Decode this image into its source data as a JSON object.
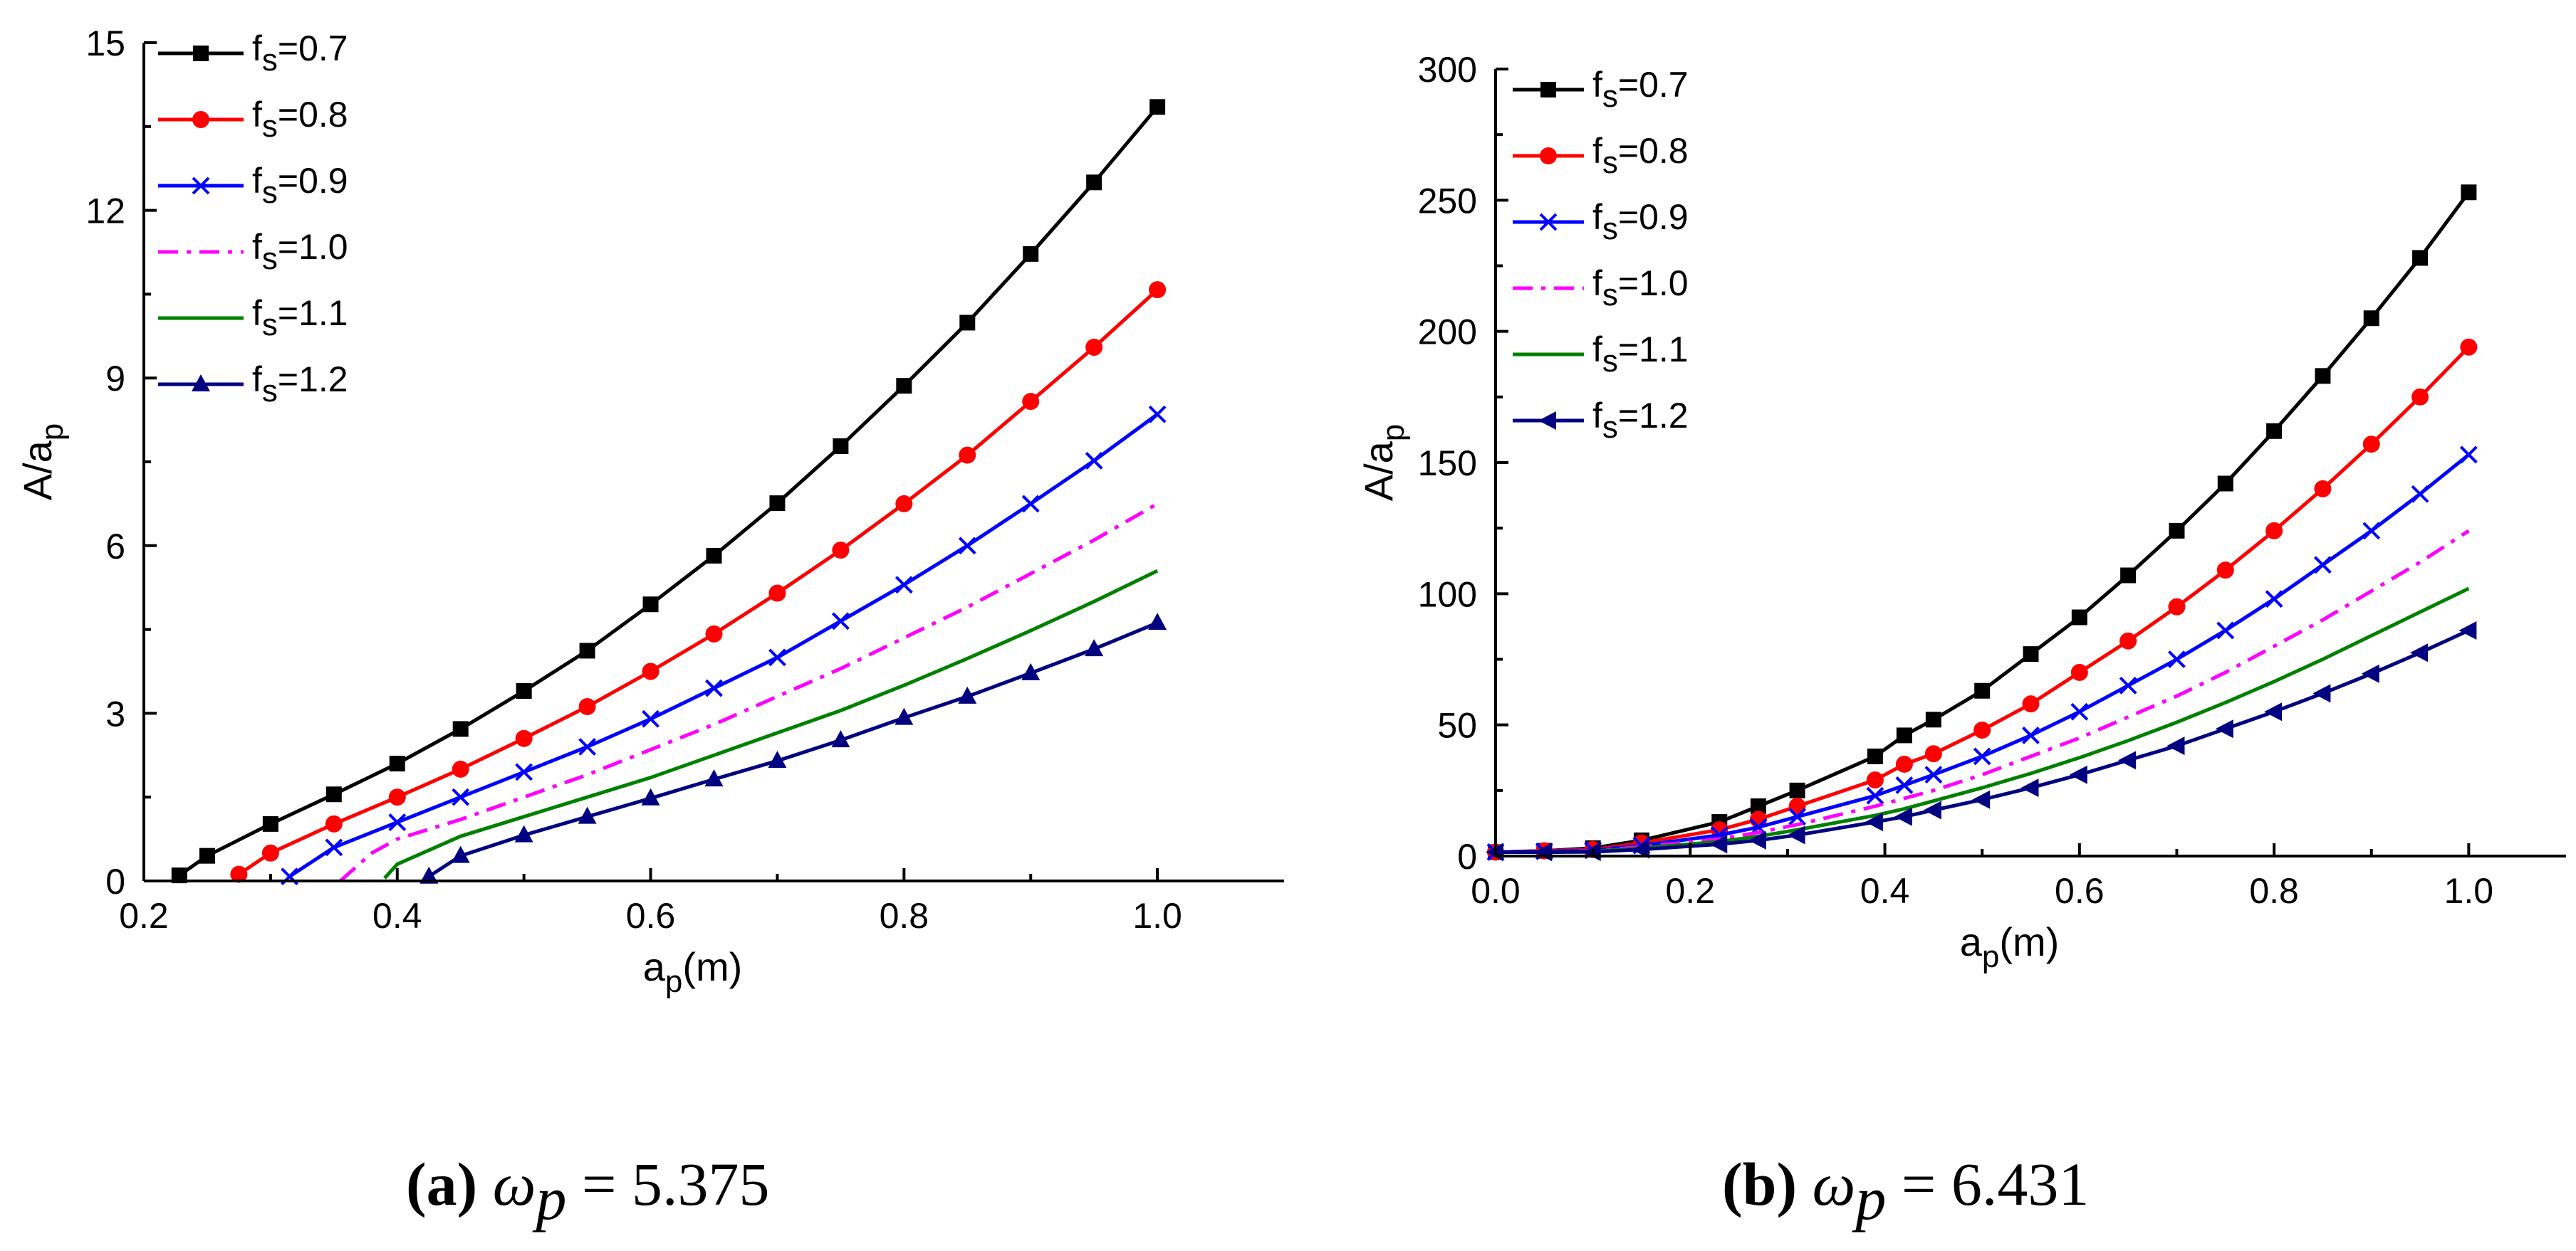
{
  "chart_data": [
    {
      "type": "line",
      "panel": "a",
      "caption": {
        "label": "(a)",
        "symbol": "ω",
        "subscript": "p",
        "equals": "=",
        "value": "5.375"
      },
      "xlabel": {
        "main": "a",
        "sub": "p",
        "rest": "(m)"
      },
      "ylabel": {
        "main": "A/a",
        "sub": "p"
      },
      "xlim": [
        0.2,
        1.1
      ],
      "ylim": [
        0,
        15
      ],
      "xticks": [
        0.2,
        0.4,
        0.6,
        0.8,
        1.0
      ],
      "xtick_labels": [
        "0.2",
        "0.4",
        "0.6",
        "0.8",
        "1.0"
      ],
      "yticks": [
        0,
        3,
        6,
        9,
        12,
        15
      ],
      "ytick_labels": [
        "0",
        "3",
        "6",
        "9",
        "12",
        "15"
      ],
      "legend_position": "top-left",
      "series": [
        {
          "name": "fs=0.7",
          "label_main": "f",
          "label_sub": "s",
          "label_rest": "=0.7",
          "color": "#000000",
          "dash": "",
          "marker": "square",
          "x": [
            0.228,
            0.25,
            0.3,
            0.35,
            0.4,
            0.45,
            0.5,
            0.55,
            0.6,
            0.65,
            0.7,
            0.75,
            0.8,
            0.85,
            0.9,
            0.95,
            1.0
          ],
          "y": [
            0.1,
            0.45,
            1.02,
            1.55,
            2.1,
            2.72,
            3.4,
            4.12,
            4.95,
            5.82,
            6.76,
            7.78,
            8.86,
            9.99,
            11.22,
            12.5,
            13.85
          ]
        },
        {
          "name": "fs=0.8",
          "label_main": "f",
          "label_sub": "s",
          "label_rest": "=0.8",
          "color": "#ff0000",
          "dash": "",
          "marker": "circle",
          "x": [
            0.275,
            0.3,
            0.35,
            0.4,
            0.45,
            0.5,
            0.55,
            0.6,
            0.65,
            0.7,
            0.75,
            0.8,
            0.85,
            0.9,
            0.95,
            1.0
          ],
          "y": [
            0.12,
            0.5,
            1.02,
            1.5,
            2.0,
            2.55,
            3.12,
            3.75,
            4.42,
            5.15,
            5.92,
            6.75,
            7.62,
            8.58,
            9.55,
            10.58
          ]
        },
        {
          "name": "fs=0.9",
          "label_main": "f",
          "label_sub": "s",
          "label_rest": "=0.9",
          "color": "#0000ff",
          "dash": "",
          "marker": "x",
          "x": [
            0.315,
            0.35,
            0.4,
            0.45,
            0.5,
            0.55,
            0.6,
            0.65,
            0.7,
            0.75,
            0.8,
            0.85,
            0.9,
            0.95,
            1.0
          ],
          "y": [
            0.08,
            0.6,
            1.05,
            1.5,
            1.95,
            2.4,
            2.9,
            3.45,
            4.0,
            4.65,
            5.3,
            6.0,
            6.75,
            7.52,
            8.35
          ]
        },
        {
          "name": "fs=1.0",
          "label_main": "f",
          "label_sub": "s",
          "label_rest": "=1.0",
          "color": "#ff00ff",
          "dash": "28,12,6,12",
          "marker": "none",
          "x": [
            0.355,
            0.38,
            0.4,
            0.45,
            0.5,
            0.55,
            0.6,
            0.65,
            0.7,
            0.75,
            0.8,
            0.85,
            0.9,
            0.95,
            1.0
          ],
          "y": [
            0.0,
            0.5,
            0.75,
            1.1,
            1.5,
            1.9,
            2.35,
            2.8,
            3.3,
            3.8,
            4.35,
            4.9,
            5.5,
            6.1,
            6.75
          ]
        },
        {
          "name": "fs=1.1",
          "label_main": "f",
          "label_sub": "s",
          "label_rest": "=1.1",
          "color": "#008000",
          "dash": "",
          "marker": "none",
          "x": [
            0.39,
            0.4,
            0.45,
            0.5,
            0.55,
            0.6,
            0.65,
            0.7,
            0.75,
            0.8,
            0.85,
            0.9,
            0.95,
            1.0
          ],
          "y": [
            0.05,
            0.3,
            0.8,
            1.15,
            1.5,
            1.85,
            2.25,
            2.65,
            3.05,
            3.5,
            3.98,
            4.48,
            5.0,
            5.55
          ]
        },
        {
          "name": "fs=1.2",
          "label_main": "f",
          "label_sub": "s",
          "label_rest": "=1.2",
          "color": "#000080",
          "dash": "",
          "marker": "triangle-up",
          "x": [
            0.425,
            0.45,
            0.5,
            0.55,
            0.6,
            0.65,
            0.7,
            0.75,
            0.8,
            0.85,
            0.9,
            0.95,
            1.0
          ],
          "y": [
            0.08,
            0.45,
            0.82,
            1.15,
            1.48,
            1.82,
            2.15,
            2.52,
            2.92,
            3.3,
            3.72,
            4.15,
            4.62
          ]
        }
      ]
    },
    {
      "type": "line",
      "panel": "b",
      "caption": {
        "label": "(b)",
        "symbol": "ω",
        "subscript": "p",
        "equals": "=",
        "value": "6.431"
      },
      "xlabel": {
        "main": "a",
        "sub": "p",
        "rest": "(m)"
      },
      "ylabel": {
        "main": "A/a",
        "sub": "p"
      },
      "xlim": [
        0.0,
        1.1
      ],
      "ylim": [
        0,
        300
      ],
      "xticks": [
        0.0,
        0.2,
        0.4,
        0.6,
        0.8,
        1.0
      ],
      "xtick_labels": [
        "0.0",
        "0.2",
        "0.4",
        "0.6",
        "0.8",
        "1.0"
      ],
      "yticks": [
        0,
        50,
        100,
        150,
        200,
        250,
        300
      ],
      "ytick_labels": [
        "0",
        "50",
        "100",
        "150",
        "200",
        "250",
        "300"
      ],
      "legend_position": "top-left",
      "series": [
        {
          "name": "fs=0.7",
          "label_main": "f",
          "label_sub": "s",
          "label_rest": "=0.7",
          "color": "#000000",
          "dash": "",
          "marker": "square",
          "x": [
            0.0,
            0.05,
            0.1,
            0.15,
            0.23,
            0.27,
            0.31,
            0.39,
            0.42,
            0.45,
            0.5,
            0.55,
            0.6,
            0.65,
            0.7,
            0.75,
            0.8,
            0.85,
            0.9,
            0.95,
            1.0
          ],
          "y": [
            1.5,
            2,
            3,
            6,
            13,
            19,
            25,
            38,
            46,
            52,
            63,
            77,
            91,
            107,
            124,
            142,
            162,
            183,
            205,
            228,
            253
          ]
        },
        {
          "name": "fs=0.8",
          "label_main": "f",
          "label_sub": "s",
          "label_rest": "=0.8",
          "color": "#ff0000",
          "dash": "",
          "marker": "circle",
          "x": [
            0.0,
            0.05,
            0.1,
            0.15,
            0.23,
            0.27,
            0.31,
            0.39,
            0.42,
            0.45,
            0.5,
            0.55,
            0.6,
            0.65,
            0.7,
            0.75,
            0.8,
            0.85,
            0.9,
            0.95,
            1.0
          ],
          "y": [
            1.5,
            2,
            2.5,
            5,
            10,
            14,
            19,
            29,
            35,
            39,
            48,
            58,
            70,
            82,
            95,
            109,
            124,
            140,
            157,
            175,
            194
          ]
        },
        {
          "name": "fs=0.9",
          "label_main": "f",
          "label_sub": "s",
          "label_rest": "=0.9",
          "color": "#0000ff",
          "dash": "",
          "marker": "x",
          "x": [
            0.0,
            0.05,
            0.1,
            0.15,
            0.23,
            0.27,
            0.31,
            0.39,
            0.42,
            0.45,
            0.5,
            0.55,
            0.6,
            0.65,
            0.7,
            0.75,
            0.8,
            0.85,
            0.9,
            0.95,
            1.0
          ],
          "y": [
            1.5,
            1.8,
            2.2,
            4,
            8,
            11,
            15,
            23,
            27,
            31,
            38,
            46,
            55,
            65,
            75,
            86,
            98,
            111,
            124,
            138,
            153
          ]
        },
        {
          "name": "fs=1.0",
          "label_main": "f",
          "label_sub": "s",
          "label_rest": "=1.0",
          "color": "#ff00ff",
          "dash": "28,12,6,12",
          "marker": "none",
          "x": [
            0.0,
            0.05,
            0.1,
            0.15,
            0.23,
            0.27,
            0.31,
            0.39,
            0.42,
            0.45,
            0.5,
            0.55,
            0.6,
            0.65,
            0.7,
            0.75,
            0.8,
            0.85,
            0.9,
            0.95,
            1.0
          ],
          "y": [
            1.5,
            1.6,
            2,
            3.5,
            6.5,
            9,
            12,
            19,
            22,
            25,
            31,
            38,
            45,
            53,
            61,
            70,
            80,
            90,
            101,
            112,
            124
          ]
        },
        {
          "name": "fs=1.1",
          "label_main": "f",
          "label_sub": "s",
          "label_rest": "=1.1",
          "color": "#008000",
          "dash": "",
          "marker": "none",
          "x": [
            0.0,
            0.05,
            0.1,
            0.15,
            0.23,
            0.27,
            0.31,
            0.39,
            0.42,
            0.45,
            0.5,
            0.55,
            0.6,
            0.65,
            0.7,
            0.75,
            0.8,
            0.85,
            0.9,
            0.95,
            1.0
          ],
          "y": [
            1.5,
            1.5,
            1.8,
            3,
            5.5,
            7.5,
            10,
            15.5,
            18,
            21,
            26,
            31.5,
            37.5,
            44,
            51,
            58.5,
            66.5,
            75,
            84,
            93,
            102
          ]
        },
        {
          "name": "fs=1.2",
          "label_main": "f",
          "label_sub": "s",
          "label_rest": "=1.2",
          "color": "#000080",
          "dash": "",
          "marker": "triangle-left",
          "x": [
            0.0,
            0.05,
            0.1,
            0.15,
            0.23,
            0.27,
            0.31,
            0.39,
            0.42,
            0.45,
            0.5,
            0.55,
            0.6,
            0.65,
            0.7,
            0.75,
            0.8,
            0.85,
            0.9,
            0.95,
            1.0
          ],
          "y": [
            1.5,
            1.5,
            1.6,
            2.5,
            4.5,
            6,
            8,
            13,
            15,
            17.5,
            21.5,
            26,
            31,
            36.5,
            42,
            48.5,
            55,
            62,
            69.5,
            77.5,
            86
          ]
        }
      ]
    }
  ]
}
